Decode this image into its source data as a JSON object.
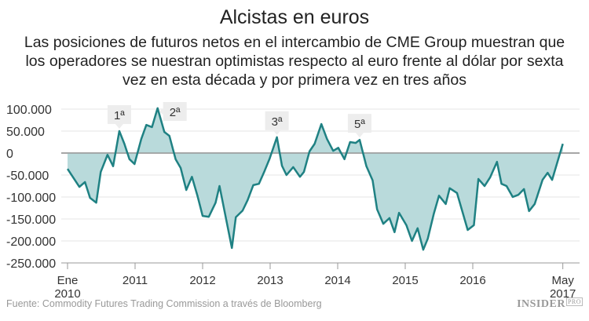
{
  "chart_data": {
    "type": "area",
    "title": "Alcistas en euros",
    "subtitle": "Las posiciones de futuros netos en el intercambio de CME Group muestran que los operadores se nuestran optimistas respecto al euro frente al dólar por sexta vez en esta década y por primera vez en tres años",
    "xlabel": "",
    "ylabel": "",
    "ylim": [
      -250000,
      100000
    ],
    "yticks": [
      "100.000",
      "50.000",
      "0",
      "-50.000",
      "-100.000",
      "-150.000",
      "-200.000",
      "-250.000"
    ],
    "ytick_values": [
      100000,
      50000,
      0,
      -50000,
      -100000,
      -150000,
      -200000,
      -250000
    ],
    "xticks": [
      {
        "date": "2010-01-01",
        "label": [
          "Ene",
          "2010"
        ]
      },
      {
        "date": "2011-01-01",
        "label": [
          "2011"
        ]
      },
      {
        "date": "2012-01-01",
        "label": [
          "2012"
        ]
      },
      {
        "date": "2013-01-01",
        "label": [
          "2013"
        ]
      },
      {
        "date": "2014-01-01",
        "label": [
          "2014"
        ]
      },
      {
        "date": "2015-01-01",
        "label": [
          "2015"
        ]
      },
      {
        "date": "2016-01-01",
        "label": [
          "2016"
        ]
      },
      {
        "date": "2017-05-01",
        "label": [
          "May",
          "2017"
        ]
      }
    ],
    "grid": true,
    "colors": {
      "line": "#1f8183",
      "fill": "#b9dadb",
      "zero": "#999999",
      "grid": "#e6e6e6"
    },
    "annotations": [
      {
        "text": "1ª",
        "date": "2010-10-07"
      },
      {
        "text": "2ª",
        "date": "2011-05-01"
      },
      {
        "text": "3ª",
        "date": "2013-02-07"
      },
      {
        "text": "5ª",
        "date": "2014-04-28"
      }
    ],
    "x": [
      "2010-01-01",
      "2010-03-04",
      "2010-04-04",
      "2010-05-01",
      "2010-06-04",
      "2010-06-28",
      "2010-08-04",
      "2010-09-04",
      "2010-10-07",
      "2010-11-04",
      "2010-12-01",
      "2010-12-28",
      "2011-02-04",
      "2011-03-01",
      "2011-04-01",
      "2011-05-01",
      "2011-06-07",
      "2011-07-04",
      "2011-08-07",
      "2011-09-04",
      "2011-10-04",
      "2011-11-04",
      "2011-12-04",
      "2012-01-01",
      "2012-02-04",
      "2012-03-10",
      "2012-04-01",
      "2012-06-07",
      "2012-06-28",
      "2012-08-04",
      "2012-09-01",
      "2012-10-01",
      "2012-11-01",
      "2012-12-01",
      "2012-12-28",
      "2013-02-07",
      "2013-03-04",
      "2013-03-28",
      "2013-05-04",
      "2013-06-10",
      "2013-07-01",
      "2013-08-01",
      "2013-08-28",
      "2013-10-04",
      "2013-11-04",
      "2013-12-07",
      "2014-01-04",
      "2014-02-07",
      "2014-03-07",
      "2014-04-07",
      "2014-04-28",
      "2014-06-04",
      "2014-07-07",
      "2014-08-01",
      "2014-09-04",
      "2014-10-07",
      "2014-11-04",
      "2014-11-28",
      "2015-01-07",
      "2015-02-07",
      "2015-03-07",
      "2015-04-07",
      "2015-05-01",
      "2015-06-04",
      "2015-07-01",
      "2015-08-07",
      "2015-08-28",
      "2015-10-07",
      "2015-12-04",
      "2016-01-07",
      "2016-02-01",
      "2016-03-04",
      "2016-04-04",
      "2016-05-10",
      "2016-06-04",
      "2016-07-01",
      "2016-08-04",
      "2016-09-04",
      "2016-10-04",
      "2016-11-01",
      "2016-12-01",
      "2017-01-13",
      "2017-02-10",
      "2017-03-04",
      "2017-05-01"
    ],
    "values": [
      -36000,
      -77000,
      -66000,
      -102000,
      -113000,
      -43000,
      -4000,
      -30000,
      50000,
      21000,
      -14000,
      -25000,
      32000,
      64000,
      59000,
      102000,
      48000,
      39000,
      -14000,
      -34000,
      -84000,
      -54000,
      -98000,
      -143000,
      -145000,
      -113000,
      -75000,
      -216000,
      -146000,
      -131000,
      -107000,
      -73000,
      -70000,
      -41000,
      -13000,
      36000,
      -29000,
      -50000,
      -32000,
      -54000,
      -43000,
      4000,
      21000,
      66000,
      32000,
      5000,
      12000,
      -14000,
      25000,
      23000,
      30000,
      -30000,
      -62000,
      -128000,
      -161000,
      -148000,
      -180000,
      -136000,
      -164000,
      -200000,
      -171000,
      -220000,
      -195000,
      -137000,
      -97000,
      -116000,
      -80000,
      -91000,
      -175000,
      -164000,
      -59000,
      -75000,
      -55000,
      -20000,
      -70000,
      -75000,
      -100000,
      -95000,
      -82000,
      -132000,
      -116000,
      -61000,
      -45000,
      -61000,
      21000
    ]
  },
  "footer": {
    "source": "Fuente: Commodity Futures Trading Commission a través de Bloomberg",
    "logo": "INSIDER",
    "logo_suffix": "PRO"
  }
}
